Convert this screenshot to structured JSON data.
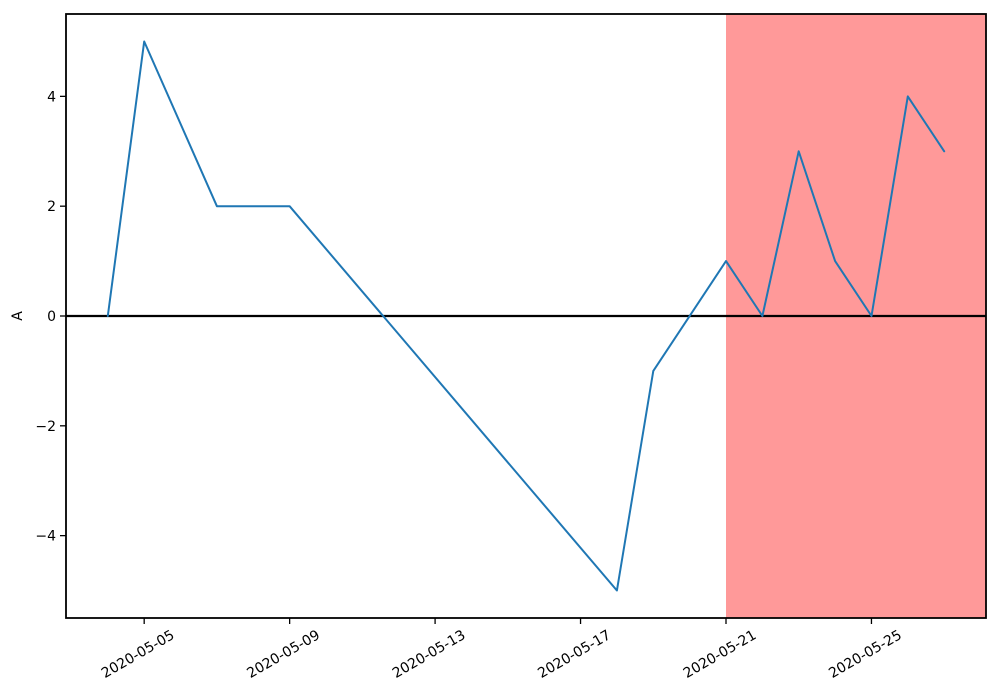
{
  "figure": {
    "background": "#ffffff",
    "axes_border_color": "#000000"
  },
  "chart_data": {
    "type": "line",
    "title": "",
    "xlabel": "",
    "ylabel": "A",
    "grid": false,
    "legend_position": "none",
    "markers": "none",
    "xlim_day_of_may_2020": [
      2.85,
      28.15
    ],
    "ylim": [
      -5.5,
      5.5
    ],
    "x_ticks": [
      "2020-05-05",
      "2020-05-09",
      "2020-05-13",
      "2020-05-17",
      "2020-05-21",
      "2020-05-25"
    ],
    "x_tick_rotation_deg": 30,
    "y_ticks": [
      -4,
      -2,
      0,
      2,
      4
    ],
    "series": [
      {
        "name": "A",
        "color": "#1f77b4",
        "points": [
          [
            "2020-05-04",
            0
          ],
          [
            "2020-05-05",
            5
          ],
          [
            "2020-05-07",
            2
          ],
          [
            "2020-05-09",
            2
          ],
          [
            "2020-05-18",
            -5
          ],
          [
            "2020-05-19",
            -1
          ],
          [
            "2020-05-21",
            1
          ],
          [
            "2020-05-22",
            0
          ],
          [
            "2020-05-23",
            3
          ],
          [
            "2020-05-24",
            1
          ],
          [
            "2020-05-25",
            0
          ],
          [
            "2020-05-26",
            4
          ],
          [
            "2020-05-27",
            3
          ]
        ]
      }
    ],
    "annotations": {
      "zero_line": {
        "y": 0,
        "color": "#000000"
      },
      "shaded_region": {
        "x_start": "2020-05-21",
        "x_end": "axis-right-edge",
        "color": "#ff9999"
      }
    }
  }
}
